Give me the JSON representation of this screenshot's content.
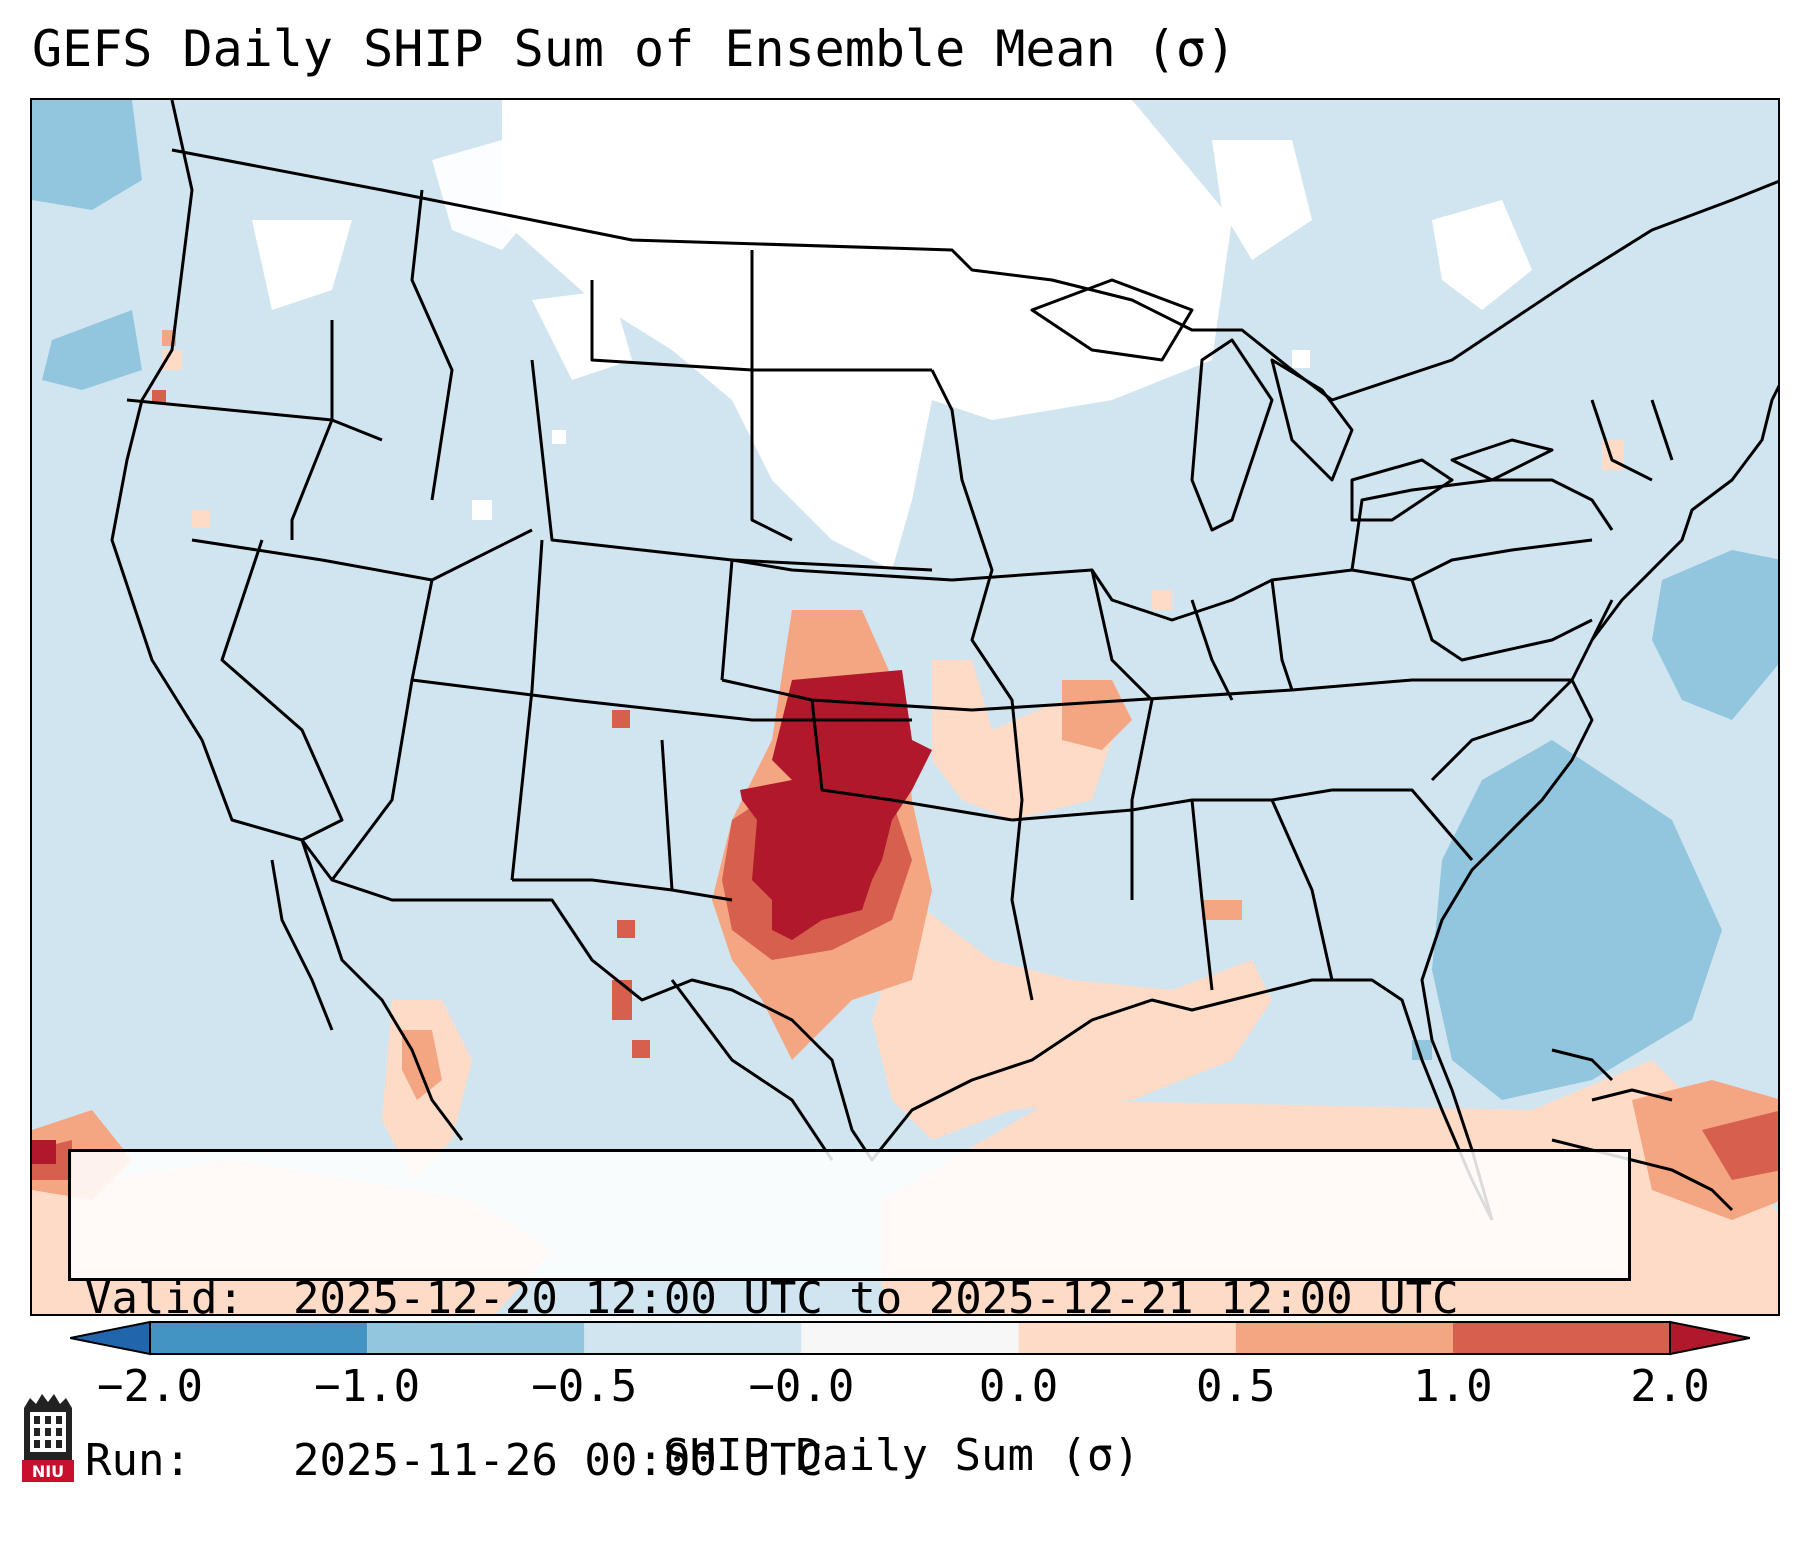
{
  "title": "GEFS Daily SHIP Sum of Ensemble Mean (σ)",
  "info": {
    "valid_key": "Valid:",
    "valid_value": "2025-12-20 12:00 UTC to 2025-12-21 12:00 UTC",
    "run_key": "Run:",
    "run_value": "2025-11-26 00:00 UTC"
  },
  "colorbar": {
    "label": "SHIP Daily Sum (σ)",
    "ticks": [
      "−2.0",
      "−1.0",
      "−0.5",
      "−0.0",
      "0.0",
      "0.5",
      "1.0",
      "2.0"
    ],
    "colors": [
      "#4393c3",
      "#92c5de",
      "#d1e5f0",
      "#f7f7f7",
      "#fddbc7",
      "#f4a582",
      "#d6604d"
    ],
    "under_color": "#2166ac",
    "over_color": "#b2182b"
  },
  "map": {
    "ocean_color": "#d1e5f0",
    "neutral_color": "#ffffff",
    "weak_negative_color": "#92c5de",
    "weak_positive_color": "#fddbc7",
    "positive_color": "#f4a582",
    "strong_positive_color": "#d6604d",
    "max_color": "#b2182b"
  },
  "logo": {
    "text": "NIU",
    "primary_color": "#c8102e"
  }
}
